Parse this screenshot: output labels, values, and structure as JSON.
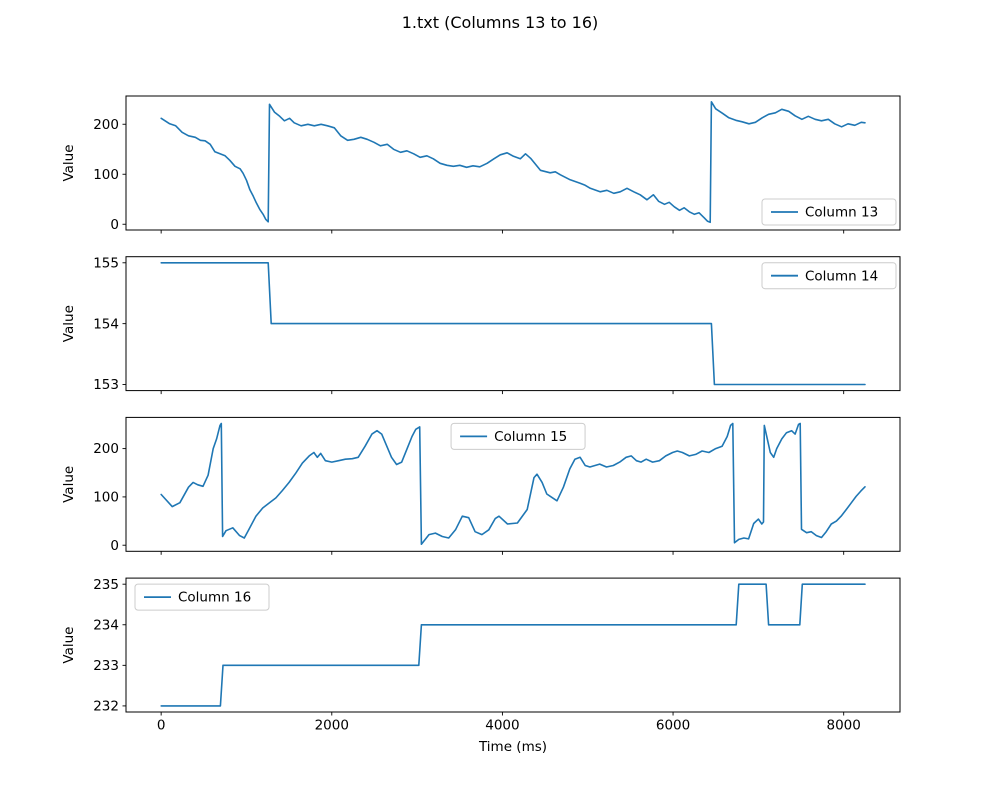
{
  "figure": {
    "title": "1.txt (Columns 13 to 16)",
    "xlabel": "Time (ms)",
    "background": "#ffffff",
    "line_color": "#1f77b4",
    "text_color": "#000000",
    "axis_color": "#000000",
    "legend_border_color": "#cccccc"
  },
  "chart_data": [
    {
      "type": "line",
      "series_name": "Column 13",
      "legend_label": "Column 13",
      "legend_position": "lower-right",
      "ylabel": "Value",
      "xlim": [
        -412,
        8660
      ],
      "ylim": [
        -11.5,
        256.5
      ],
      "xticks": [
        0,
        2000,
        4000,
        6000,
        8000
      ],
      "yticks": [
        0,
        100,
        200
      ],
      "show_x_tick_labels": false,
      "points": [
        [
          0,
          212
        ],
        [
          100,
          201
        ],
        [
          170,
          197
        ],
        [
          245,
          184
        ],
        [
          320,
          177
        ],
        [
          400,
          174
        ],
        [
          460,
          168
        ],
        [
          515,
          167
        ],
        [
          575,
          160
        ],
        [
          630,
          145
        ],
        [
          690,
          141
        ],
        [
          750,
          137
        ],
        [
          805,
          128
        ],
        [
          865,
          116
        ],
        [
          925,
          111
        ],
        [
          960,
          102
        ],
        [
          1000,
          88
        ],
        [
          1040,
          69
        ],
        [
          1080,
          56
        ],
        [
          1115,
          43
        ],
        [
          1155,
          30
        ],
        [
          1195,
          20
        ],
        [
          1225,
          10
        ],
        [
          1255,
          5
        ],
        [
          1270,
          240
        ],
        [
          1330,
          224
        ],
        [
          1390,
          216
        ],
        [
          1445,
          207
        ],
        [
          1505,
          212
        ],
        [
          1560,
          203
        ],
        [
          1640,
          197
        ],
        [
          1720,
          200
        ],
        [
          1795,
          197
        ],
        [
          1875,
          200
        ],
        [
          1950,
          197
        ],
        [
          2030,
          193
        ],
        [
          2105,
          177
        ],
        [
          2185,
          168
        ],
        [
          2260,
          170
        ],
        [
          2340,
          174
        ],
        [
          2415,
          170
        ],
        [
          2495,
          164
        ],
        [
          2570,
          157
        ],
        [
          2650,
          160
        ],
        [
          2725,
          150
        ],
        [
          2805,
          144
        ],
        [
          2880,
          147
        ],
        [
          2960,
          141
        ],
        [
          3035,
          134
        ],
        [
          3115,
          137
        ],
        [
          3190,
          131
        ],
        [
          3270,
          122
        ],
        [
          3350,
          118
        ],
        [
          3425,
          116
        ],
        [
          3500,
          118
        ],
        [
          3580,
          114
        ],
        [
          3655,
          117
        ],
        [
          3735,
          115
        ],
        [
          3820,
          122
        ],
        [
          3900,
          131
        ],
        [
          3975,
          139
        ],
        [
          4055,
          143
        ],
        [
          4130,
          136
        ],
        [
          4210,
          131
        ],
        [
          4270,
          141
        ],
        [
          4330,
          132
        ],
        [
          4445,
          108
        ],
        [
          4560,
          103
        ],
        [
          4620,
          105
        ],
        [
          4680,
          99
        ],
        [
          4795,
          89
        ],
        [
          4910,
          82
        ],
        [
          4970,
          78
        ],
        [
          5030,
          72
        ],
        [
          5145,
          65
        ],
        [
          5225,
          68
        ],
        [
          5305,
          62
        ],
        [
          5380,
          65
        ],
        [
          5460,
          72
        ],
        [
          5540,
          65
        ],
        [
          5615,
          59
        ],
        [
          5695,
          49
        ],
        [
          5770,
          59
        ],
        [
          5830,
          46
        ],
        [
          5900,
          40
        ],
        [
          5955,
          44
        ],
        [
          6015,
          35
        ],
        [
          6075,
          28
        ],
        [
          6130,
          33
        ],
        [
          6190,
          25
        ],
        [
          6250,
          20
        ],
        [
          6305,
          23
        ],
        [
          6365,
          13
        ],
        [
          6405,
          6
        ],
        [
          6435,
          4
        ],
        [
          6450,
          245
        ],
        [
          6500,
          231
        ],
        [
          6580,
          222
        ],
        [
          6655,
          213
        ],
        [
          6735,
          208
        ],
        [
          6810,
          205
        ],
        [
          6890,
          201
        ],
        [
          6965,
          204
        ],
        [
          7045,
          213
        ],
        [
          7120,
          220
        ],
        [
          7200,
          223
        ],
        [
          7275,
          230
        ],
        [
          7355,
          226
        ],
        [
          7430,
          217
        ],
        [
          7510,
          210
        ],
        [
          7585,
          216
        ],
        [
          7665,
          210
        ],
        [
          7740,
          207
        ],
        [
          7820,
          210
        ],
        [
          7895,
          201
        ],
        [
          7975,
          195
        ],
        [
          8050,
          201
        ],
        [
          8130,
          198
        ],
        [
          8205,
          204
        ],
        [
          8250,
          203
        ]
      ]
    },
    {
      "type": "line",
      "series_name": "Column 14",
      "legend_label": "Column 14",
      "legend_position": "upper-right",
      "ylabel": "Value",
      "xlim": [
        -412,
        8660
      ],
      "ylim": [
        152.9,
        155.1
      ],
      "xticks": [
        0,
        2000,
        4000,
        6000,
        8000
      ],
      "yticks": [
        153,
        154,
        155
      ],
      "show_x_tick_labels": false,
      "points": [
        [
          0,
          155
        ],
        [
          1255,
          155
        ],
        [
          1290,
          154
        ],
        [
          6450,
          154
        ],
        [
          6485,
          153
        ],
        [
          8250,
          153
        ]
      ]
    },
    {
      "type": "line",
      "series_name": "Column 15",
      "legend_label": "Column 15",
      "legend_position": "upper-center",
      "ylabel": "Value",
      "xlim": [
        -412,
        8660
      ],
      "ylim": [
        -12.6,
        264.6
      ],
      "xticks": [
        0,
        2000,
        4000,
        6000,
        8000
      ],
      "yticks": [
        0,
        100,
        200
      ],
      "show_x_tick_labels": false,
      "points": [
        [
          0,
          105
        ],
        [
          130,
          80
        ],
        [
          220,
          88
        ],
        [
          320,
          120
        ],
        [
          375,
          130
        ],
        [
          430,
          125
        ],
        [
          490,
          122
        ],
        [
          550,
          145
        ],
        [
          610,
          200
        ],
        [
          650,
          220
        ],
        [
          690,
          248
        ],
        [
          705,
          252
        ],
        [
          720,
          18
        ],
        [
          760,
          30
        ],
        [
          840,
          36
        ],
        [
          920,
          20
        ],
        [
          975,
          15
        ],
        [
          1030,
          33
        ],
        [
          1110,
          60
        ],
        [
          1190,
          77
        ],
        [
          1270,
          88
        ],
        [
          1345,
          98
        ],
        [
          1420,
          113
        ],
        [
          1500,
          130
        ],
        [
          1580,
          150
        ],
        [
          1655,
          170
        ],
        [
          1735,
          185
        ],
        [
          1790,
          192
        ],
        [
          1830,
          182
        ],
        [
          1870,
          190
        ],
        [
          1925,
          175
        ],
        [
          2000,
          172
        ],
        [
          2080,
          175
        ],
        [
          2160,
          178
        ],
        [
          2240,
          179
        ],
        [
          2310,
          182
        ],
        [
          2390,
          205
        ],
        [
          2470,
          230
        ],
        [
          2530,
          237
        ],
        [
          2585,
          230
        ],
        [
          2645,
          205
        ],
        [
          2700,
          182
        ],
        [
          2760,
          167
        ],
        [
          2820,
          172
        ],
        [
          2895,
          205
        ],
        [
          2940,
          225
        ],
        [
          2985,
          240
        ],
        [
          3030,
          245
        ],
        [
          3050,
          2
        ],
        [
          3140,
          22
        ],
        [
          3215,
          25
        ],
        [
          3295,
          18
        ],
        [
          3370,
          15
        ],
        [
          3450,
          32
        ],
        [
          3530,
          60
        ],
        [
          3605,
          57
        ],
        [
          3680,
          28
        ],
        [
          3760,
          22
        ],
        [
          3840,
          32
        ],
        [
          3915,
          55
        ],
        [
          3960,
          60
        ],
        [
          4060,
          44
        ],
        [
          4175,
          46
        ],
        [
          4290,
          74
        ],
        [
          4370,
          140
        ],
        [
          4405,
          147
        ],
        [
          4465,
          130
        ],
        [
          4520,
          106
        ],
        [
          4580,
          99
        ],
        [
          4640,
          92
        ],
        [
          4715,
          120
        ],
        [
          4790,
          158
        ],
        [
          4850,
          178
        ],
        [
          4910,
          182
        ],
        [
          4970,
          165
        ],
        [
          5025,
          162
        ],
        [
          5085,
          165
        ],
        [
          5140,
          168
        ],
        [
          5220,
          162
        ],
        [
          5300,
          165
        ],
        [
          5375,
          172
        ],
        [
          5450,
          182
        ],
        [
          5510,
          185
        ],
        [
          5570,
          175
        ],
        [
          5625,
          172
        ],
        [
          5685,
          178
        ],
        [
          5760,
          172
        ],
        [
          5840,
          175
        ],
        [
          5915,
          185
        ],
        [
          5995,
          192
        ],
        [
          6050,
          195
        ],
        [
          6110,
          192
        ],
        [
          6190,
          185
        ],
        [
          6265,
          188
        ],
        [
          6340,
          195
        ],
        [
          6420,
          192
        ],
        [
          6500,
          200
        ],
        [
          6575,
          205
        ],
        [
          6635,
          225
        ],
        [
          6675,
          248
        ],
        [
          6700,
          252
        ],
        [
          6720,
          5
        ],
        [
          6770,
          12
        ],
        [
          6830,
          15
        ],
        [
          6885,
          13
        ],
        [
          6945,
          45
        ],
        [
          7000,
          54
        ],
        [
          7040,
          44
        ],
        [
          7060,
          48
        ],
        [
          7070,
          248
        ],
        [
          7105,
          220
        ],
        [
          7140,
          192
        ],
        [
          7180,
          182
        ],
        [
          7215,
          200
        ],
        [
          7275,
          220
        ],
        [
          7330,
          233
        ],
        [
          7390,
          237
        ],
        [
          7430,
          230
        ],
        [
          7470,
          250
        ],
        [
          7490,
          252
        ],
        [
          7505,
          33
        ],
        [
          7565,
          26
        ],
        [
          7620,
          28
        ],
        [
          7680,
          20
        ],
        [
          7740,
          16
        ],
        [
          7795,
          28
        ],
        [
          7855,
          44
        ],
        [
          7915,
          50
        ],
        [
          7970,
          60
        ],
        [
          8030,
          74
        ],
        [
          8090,
          88
        ],
        [
          8145,
          101
        ],
        [
          8200,
          112
        ],
        [
          8250,
          121
        ]
      ]
    },
    {
      "type": "line",
      "series_name": "Column 16",
      "legend_label": "Column 16",
      "legend_position": "upper-left",
      "ylabel": "Value",
      "xlabel": "Time (ms)",
      "xlim": [
        -412,
        8660
      ],
      "ylim": [
        231.85,
        235.15
      ],
      "xticks": [
        0,
        2000,
        4000,
        6000,
        8000
      ],
      "yticks": [
        232,
        233,
        234,
        235
      ],
      "show_x_tick_labels": true,
      "points": [
        [
          0,
          232
        ],
        [
          695,
          232
        ],
        [
          725,
          233
        ],
        [
          3020,
          233
        ],
        [
          3050,
          234
        ],
        [
          6740,
          234
        ],
        [
          6770,
          235
        ],
        [
          7090,
          235
        ],
        [
          7120,
          234
        ],
        [
          7485,
          234
        ],
        [
          7515,
          235
        ],
        [
          8250,
          235
        ]
      ]
    }
  ]
}
